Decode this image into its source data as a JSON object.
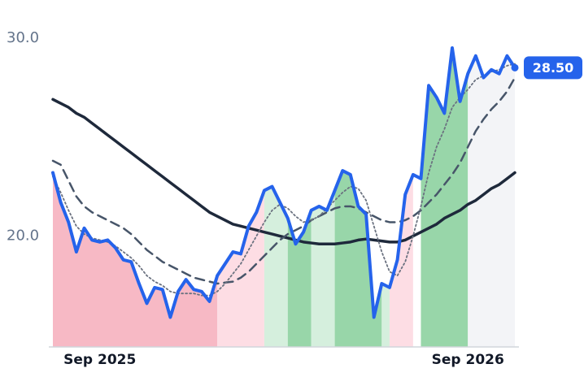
{
  "chart_data": {
    "type": "line",
    "categories": [
      null,
      null,
      null,
      null,
      null,
      null,
      "Sep 2025",
      null,
      null,
      null,
      null,
      null,
      null,
      null,
      null,
      null,
      null,
      null,
      null,
      null,
      null,
      null,
      null,
      null,
      null,
      null,
      null,
      null,
      null,
      null,
      null,
      null,
      null,
      null,
      null,
      null,
      null,
      null,
      null,
      null,
      null,
      null,
      null,
      null,
      null,
      null,
      null,
      null,
      null,
      null,
      null,
      null,
      null,
      "Sep 2026",
      null,
      null,
      null,
      null,
      null,
      null
    ],
    "ylim": [
      14.4,
      31.1
    ],
    "yticks": [
      {
        "value": 20,
        "label": "20.0"
      },
      {
        "value": 30,
        "label": "30.0"
      }
    ],
    "grid": false,
    "series": [
      {
        "color": "#1e293b",
        "style": "solid",
        "width": 3.5,
        "values": [
          26.9,
          26.7,
          26.5,
          26.2,
          26.0,
          25.7,
          25.4,
          25.1,
          24.8,
          24.5,
          24.2,
          23.9,
          23.6,
          23.3,
          23.0,
          22.7,
          22.4,
          22.1,
          21.8,
          21.5,
          21.2,
          21.0,
          20.8,
          20.6,
          20.5,
          20.4,
          20.3,
          20.2,
          20.1,
          20.0,
          19.9,
          19.8,
          19.7,
          19.65,
          19.6,
          19.6,
          19.6,
          19.65,
          19.7,
          19.8,
          19.85,
          19.8,
          19.75,
          19.7,
          19.7,
          19.8,
          20.0,
          20.2,
          20.4,
          20.6,
          20.9,
          21.1,
          21.3,
          21.6,
          21.8,
          22.1,
          22.4,
          22.6,
          22.9,
          23.2
        ]
      },
      {
        "color": "#475569",
        "style": "dashed",
        "width": 2.5,
        "values": [
          23.8,
          23.6,
          22.8,
          22.0,
          21.5,
          21.2,
          21.0,
          20.8,
          20.6,
          20.4,
          20.1,
          19.7,
          19.3,
          19.0,
          18.7,
          18.5,
          18.3,
          18.1,
          17.9,
          17.8,
          17.7,
          17.6,
          17.65,
          17.7,
          17.9,
          18.2,
          18.6,
          19.0,
          19.4,
          19.8,
          20.1,
          20.3,
          20.5,
          20.8,
          21.0,
          21.2,
          21.4,
          21.5,
          21.5,
          21.4,
          21.2,
          21.0,
          20.8,
          20.7,
          20.7,
          20.8,
          21.0,
          21.3,
          21.7,
          22.1,
          22.6,
          23.1,
          23.7,
          24.5,
          25.3,
          25.9,
          26.4,
          26.8,
          27.3,
          28.0
        ]
      },
      {
        "color": "#6b7280",
        "style": "dotted",
        "width": 1.8,
        "values": [
          23.0,
          22.2,
          21.3,
          20.5,
          20.1,
          19.9,
          19.8,
          19.7,
          19.5,
          19.2,
          18.9,
          18.5,
          18.0,
          17.7,
          17.5,
          17.2,
          17.1,
          17.1,
          17.1,
          17.0,
          17.0,
          17.2,
          17.6,
          18.1,
          18.6,
          19.3,
          20.0,
          20.7,
          21.3,
          21.6,
          21.4,
          21.0,
          20.7,
          20.8,
          21.0,
          21.4,
          21.8,
          22.2,
          22.5,
          22.4,
          21.8,
          20.5,
          19.2,
          18.2,
          18.0,
          18.7,
          20.0,
          21.5,
          23.2,
          24.5,
          25.4,
          26.5,
          27.0,
          27.4,
          27.9,
          28.1,
          28.3,
          28.4,
          28.6,
          28.7
        ]
      },
      {
        "color": "#2563eb",
        "style": "solid",
        "width": 4,
        "last_value_label": "28.50",
        "values": [
          23.2,
          21.7,
          20.7,
          19.2,
          20.4,
          19.8,
          19.7,
          19.8,
          19.4,
          18.8,
          18.7,
          17.6,
          16.6,
          17.4,
          17.3,
          15.9,
          17.2,
          17.8,
          17.3,
          17.2,
          16.7,
          18.0,
          18.6,
          19.2,
          19.1,
          20.5,
          21.2,
          22.3,
          22.5,
          21.7,
          20.9,
          19.6,
          20.2,
          21.3,
          21.5,
          21.3,
          22.3,
          23.3,
          23.1,
          21.5,
          21.1,
          15.9,
          17.6,
          17.4,
          18.8,
          22.1,
          23.1,
          22.9,
          27.6,
          27.0,
          26.2,
          29.5,
          26.8,
          28.2,
          29.1,
          28.0,
          28.4,
          28.2,
          29.1,
          28.5
        ]
      }
    ],
    "segments": [
      {
        "from": 0,
        "to": 21,
        "color": "#f7b9c5"
      },
      {
        "from": 21,
        "to": 27,
        "color": "#fddde4"
      },
      {
        "from": 27,
        "to": 30,
        "color": "#d5efdd"
      },
      {
        "from": 30,
        "to": 33,
        "color": "#98d6a9"
      },
      {
        "from": 33,
        "to": 36,
        "color": "#d5efdd"
      },
      {
        "from": 36,
        "to": 42,
        "color": "#98d6a9"
      },
      {
        "from": 42,
        "to": 43,
        "color": "#d5efdd"
      },
      {
        "from": 43,
        "to": 46,
        "color": "#fddde4"
      },
      {
        "from": 47,
        "to": 53,
        "color": "#98d6a9"
      },
      {
        "from": 53,
        "to": 59,
        "color": "#f3f4f7"
      }
    ]
  }
}
